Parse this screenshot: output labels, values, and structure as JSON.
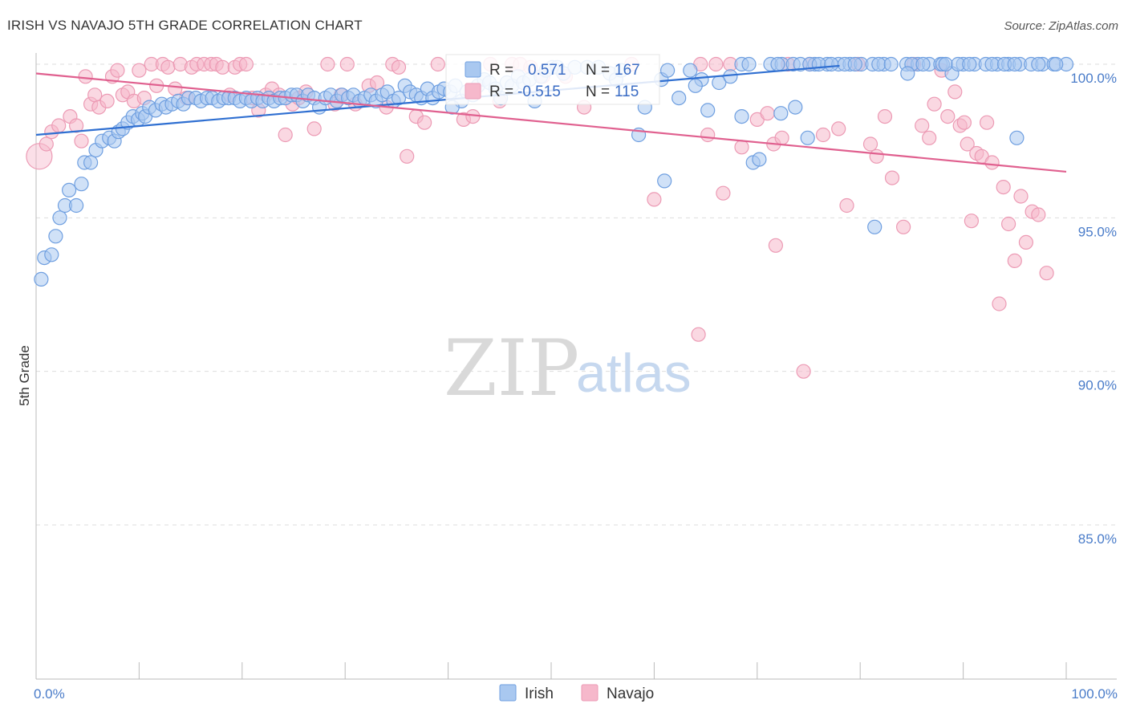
{
  "header": {
    "title": "IRISH VS NAVAJO 5TH GRADE CORRELATION CHART",
    "source": "Source: ZipAtlas.com"
  },
  "watermark": {
    "zip": "ZIP",
    "atlas": "atlas"
  },
  "colors": {
    "irish_fill": "#a9c8f0",
    "irish_stroke": "#6f9fe0",
    "irish_line": "#2f6fd1",
    "navajo_fill": "#f6b8cb",
    "navajo_stroke": "#ec9ab4",
    "navajo_line": "#e0608f",
    "grid": "#dddddd",
    "tick_text": "#4a7cc9"
  },
  "legend": {
    "irish_label": "Irish",
    "navajo_label": "Navajo"
  },
  "stats": {
    "irish": {
      "r_label": "R =",
      "r_value": "0.571",
      "n_label": "N =",
      "n_value": "167"
    },
    "navajo": {
      "r_label": "R =",
      "r_value": "-0.515",
      "n_label": "N =",
      "n_value": "115"
    }
  },
  "chart_data": {
    "type": "scatter",
    "title": "IRISH VS NAVAJO 5TH GRADE CORRELATION CHART",
    "xlabel": "",
    "ylabel": "5th Grade",
    "xlim": [
      0,
      100
    ],
    "ylim": [
      80.5,
      100.5
    ],
    "x_tick_labels": [
      "0.0%",
      "100.0%"
    ],
    "y_ticks": [
      100,
      95,
      90,
      85
    ],
    "y_tick_labels": [
      "100.0%",
      "95.0%",
      "90.0%",
      "85.0%"
    ],
    "grid": true,
    "legend_position": "bottom-center",
    "series": [
      {
        "name": "Irish",
        "trend": {
          "x": [
            0,
            78
          ],
          "y": [
            97.7,
            99.95
          ]
        },
        "points": [
          [
            0.5,
            93.0
          ],
          [
            0.8,
            93.7
          ],
          [
            1.5,
            93.8
          ],
          [
            1.9,
            94.4
          ],
          [
            2.3,
            95.0
          ],
          [
            2.8,
            95.4
          ],
          [
            3.2,
            95.9
          ],
          [
            3.9,
            95.4
          ],
          [
            4.4,
            96.1
          ],
          [
            4.7,
            96.8
          ],
          [
            5.3,
            96.8
          ],
          [
            5.8,
            97.2
          ],
          [
            6.4,
            97.5
          ],
          [
            7.1,
            97.6
          ],
          [
            7.6,
            97.5
          ],
          [
            8.0,
            97.8
          ],
          [
            8.4,
            97.9
          ],
          [
            8.9,
            98.1
          ],
          [
            9.4,
            98.3
          ],
          [
            9.9,
            98.2
          ],
          [
            10.3,
            98.4
          ],
          [
            10.6,
            98.3
          ],
          [
            11.0,
            98.6
          ],
          [
            11.6,
            98.5
          ],
          [
            12.2,
            98.7
          ],
          [
            12.6,
            98.6
          ],
          [
            13.2,
            98.7
          ],
          [
            13.8,
            98.8
          ],
          [
            14.3,
            98.7
          ],
          [
            14.8,
            98.9
          ],
          [
            15.5,
            98.9
          ],
          [
            16.0,
            98.8
          ],
          [
            16.6,
            98.9
          ],
          [
            17.1,
            98.9
          ],
          [
            17.7,
            98.8
          ],
          [
            18.2,
            98.9
          ],
          [
            18.7,
            98.9
          ],
          [
            19.3,
            98.9
          ],
          [
            19.8,
            98.8
          ],
          [
            20.4,
            98.9
          ],
          [
            20.9,
            98.8
          ],
          [
            21.5,
            98.9
          ],
          [
            22.0,
            98.8
          ],
          [
            22.6,
            98.9
          ],
          [
            23.1,
            98.8
          ],
          [
            23.7,
            98.9
          ],
          [
            24.2,
            98.9
          ],
          [
            24.8,
            99.0
          ],
          [
            25.3,
            99.0
          ],
          [
            25.9,
            98.8
          ],
          [
            26.4,
            99.0
          ],
          [
            27.0,
            98.9
          ],
          [
            27.5,
            98.6
          ],
          [
            28.1,
            98.9
          ],
          [
            28.6,
            99.0
          ],
          [
            29.2,
            98.8
          ],
          [
            29.7,
            99.0
          ],
          [
            30.3,
            98.9
          ],
          [
            30.8,
            99.0
          ],
          [
            31.4,
            98.8
          ],
          [
            31.9,
            98.9
          ],
          [
            32.5,
            99.0
          ],
          [
            33.0,
            98.8
          ],
          [
            33.6,
            99.0
          ],
          [
            34.1,
            99.1
          ],
          [
            34.7,
            98.8
          ],
          [
            35.2,
            98.9
          ],
          [
            35.8,
            99.3
          ],
          [
            36.3,
            99.1
          ],
          [
            36.9,
            99.0
          ],
          [
            37.4,
            98.9
          ],
          [
            38.0,
            99.2
          ],
          [
            38.5,
            98.9
          ],
          [
            39.1,
            99.1
          ],
          [
            39.6,
            99.2
          ],
          [
            40.2,
            99.1
          ],
          [
            40.7,
            99.3
          ],
          [
            41.3,
            98.8
          ],
          [
            41.8,
            99.1
          ],
          [
            42.4,
            99.0
          ],
          [
            42.9,
            99.3
          ],
          [
            43.5,
            99.5
          ],
          [
            44.0,
            99.4
          ],
          [
            44.6,
            99.2
          ],
          [
            45.1,
            98.9
          ],
          [
            45.7,
            99.4
          ],
          [
            46.2,
            99.3
          ],
          [
            46.8,
            99.6
          ],
          [
            47.3,
            99.4
          ],
          [
            47.9,
            99.5
          ],
          [
            48.4,
            98.8
          ],
          [
            49.0,
            99.6
          ],
          [
            49.5,
            99.8
          ],
          [
            50.1,
            99.9
          ],
          [
            50.6,
            99.9
          ],
          [
            51.2,
            99.7
          ],
          [
            52.3,
            99.9
          ],
          [
            53.5,
            99.9
          ],
          [
            54.6,
            99.9
          ],
          [
            55.7,
            99.7
          ],
          [
            56.3,
            99.5
          ],
          [
            56.8,
            99.8
          ],
          [
            58.5,
            97.7
          ],
          [
            59.1,
            98.6
          ],
          [
            60.7,
            99.5
          ],
          [
            61.3,
            99.8
          ],
          [
            62.4,
            98.9
          ],
          [
            63.5,
            99.8
          ],
          [
            64.6,
            99.5
          ],
          [
            65.2,
            98.5
          ],
          [
            66.3,
            99.4
          ],
          [
            67.4,
            99.6
          ],
          [
            68.5,
            98.3
          ],
          [
            69.6,
            96.8
          ],
          [
            70.2,
            96.9
          ],
          [
            71.3,
            100
          ],
          [
            72.4,
            100
          ],
          [
            73.5,
            100
          ],
          [
            75.6,
            100
          ],
          [
            76.8,
            100
          ],
          [
            77.9,
            100
          ],
          [
            79.0,
            100
          ],
          [
            80.1,
            100
          ],
          [
            81.2,
            100
          ],
          [
            82.3,
            100
          ],
          [
            84.5,
            100
          ],
          [
            85.6,
            100
          ],
          [
            86.7,
            100
          ],
          [
            87.8,
            100
          ],
          [
            88.9,
            99.7
          ],
          [
            90.0,
            100
          ],
          [
            91.1,
            100
          ],
          [
            92.2,
            100
          ],
          [
            93.3,
            100
          ],
          [
            94.4,
            100
          ],
          [
            95.5,
            100
          ],
          [
            96.6,
            100
          ],
          [
            97.7,
            100
          ],
          [
            98.8,
            100
          ],
          [
            100.0,
            100
          ],
          [
            88.0,
            100
          ],
          [
            68.5,
            100
          ],
          [
            69.2,
            100
          ],
          [
            72.0,
            100
          ],
          [
            74.2,
            100
          ],
          [
            75.1,
            100
          ],
          [
            76.0,
            100
          ],
          [
            77.2,
            100
          ],
          [
            78.5,
            100
          ],
          [
            79.5,
            100
          ],
          [
            81.8,
            100
          ],
          [
            83.0,
            100
          ],
          [
            85.0,
            100
          ],
          [
            86.1,
            100
          ],
          [
            88.3,
            100
          ],
          [
            89.5,
            100
          ],
          [
            90.6,
            100
          ],
          [
            92.8,
            100
          ],
          [
            94.0,
            100
          ],
          [
            95.0,
            100
          ],
          [
            97.3,
            100
          ],
          [
            99.0,
            100
          ],
          [
            61.0,
            96.2
          ],
          [
            64.0,
            99.3
          ],
          [
            72.3,
            98.4
          ],
          [
            73.7,
            98.6
          ],
          [
            74.9,
            97.6
          ],
          [
            81.4,
            94.7
          ],
          [
            84.6,
            99.7
          ],
          [
            95.2,
            97.6
          ],
          [
            40.4,
            98.6
          ]
        ]
      },
      {
        "name": "Navajo",
        "trend": {
          "x": [
            0,
            100
          ],
          "y": [
            99.7,
            96.5
          ]
        },
        "points": [
          [
            0.3,
            97.0
          ],
          [
            1.0,
            97.4
          ],
          [
            1.5,
            97.8
          ],
          [
            2.2,
            98.0
          ],
          [
            3.3,
            98.3
          ],
          [
            3.9,
            98.0
          ],
          [
            4.4,
            97.5
          ],
          [
            4.8,
            99.6
          ],
          [
            5.3,
            98.7
          ],
          [
            5.7,
            99.0
          ],
          [
            6.1,
            98.6
          ],
          [
            6.9,
            98.8
          ],
          [
            7.4,
            99.6
          ],
          [
            7.9,
            99.8
          ],
          [
            8.4,
            99.0
          ],
          [
            8.9,
            99.1
          ],
          [
            9.5,
            98.8
          ],
          [
            10.0,
            99.8
          ],
          [
            10.5,
            98.9
          ],
          [
            11.2,
            100
          ],
          [
            11.7,
            99.3
          ],
          [
            12.3,
            100
          ],
          [
            12.8,
            99.9
          ],
          [
            13.5,
            99.2
          ],
          [
            14.0,
            100
          ],
          [
            14.6,
            98.9
          ],
          [
            15.1,
            99.9
          ],
          [
            15.6,
            100
          ],
          [
            16.3,
            100
          ],
          [
            17.0,
            100
          ],
          [
            17.5,
            100
          ],
          [
            18.1,
            99.9
          ],
          [
            18.8,
            99.0
          ],
          [
            19.3,
            99.9
          ],
          [
            19.8,
            100
          ],
          [
            20.4,
            100
          ],
          [
            21.0,
            98.9
          ],
          [
            21.6,
            98.5
          ],
          [
            22.3,
            99.0
          ],
          [
            22.9,
            99.2
          ],
          [
            23.6,
            99.0
          ],
          [
            24.2,
            97.7
          ],
          [
            24.9,
            98.7
          ],
          [
            25.5,
            98.9
          ],
          [
            26.2,
            99.1
          ],
          [
            27.0,
            97.9
          ],
          [
            28.3,
            100
          ],
          [
            29.0,
            98.7
          ],
          [
            29.6,
            99.0
          ],
          [
            30.2,
            100
          ],
          [
            31.0,
            98.7
          ],
          [
            32.3,
            99.3
          ],
          [
            33.1,
            99.4
          ],
          [
            34.0,
            98.6
          ],
          [
            34.6,
            100
          ],
          [
            35.2,
            99.9
          ],
          [
            36.0,
            97.0
          ],
          [
            36.9,
            98.3
          ],
          [
            37.7,
            98.1
          ],
          [
            39.0,
            100
          ],
          [
            41.5,
            98.2
          ],
          [
            42.4,
            98.3
          ],
          [
            44.1,
            100
          ],
          [
            45.0,
            98.8
          ],
          [
            46.2,
            100
          ],
          [
            47.0,
            100
          ],
          [
            48.0,
            99.9
          ],
          [
            49.2,
            99.6
          ],
          [
            51.4,
            99.6
          ],
          [
            53.2,
            98.6
          ],
          [
            57.8,
            100
          ],
          [
            60.0,
            95.6
          ],
          [
            64.3,
            91.2
          ],
          [
            64.5,
            100
          ],
          [
            65.2,
            97.7
          ],
          [
            66.0,
            100
          ],
          [
            66.7,
            95.8
          ],
          [
            67.4,
            100
          ],
          [
            68.5,
            97.3
          ],
          [
            70.0,
            98.2
          ],
          [
            71.0,
            98.4
          ],
          [
            71.6,
            97.4
          ],
          [
            71.8,
            94.1
          ],
          [
            72.4,
            97.6
          ],
          [
            73.0,
            100
          ],
          [
            74.5,
            90.0
          ],
          [
            75.1,
            100
          ],
          [
            76.4,
            97.7
          ],
          [
            77.9,
            97.9
          ],
          [
            78.7,
            95.4
          ],
          [
            79.8,
            100
          ],
          [
            81.0,
            97.4
          ],
          [
            81.6,
            97.0
          ],
          [
            82.4,
            98.3
          ],
          [
            83.1,
            96.3
          ],
          [
            84.2,
            94.7
          ],
          [
            85.2,
            100
          ],
          [
            86.0,
            98.0
          ],
          [
            86.7,
            97.6
          ],
          [
            87.2,
            98.7
          ],
          [
            87.9,
            99.8
          ],
          [
            88.5,
            98.3
          ],
          [
            89.2,
            99.1
          ],
          [
            89.7,
            98.0
          ],
          [
            90.1,
            98.1
          ],
          [
            90.4,
            97.4
          ],
          [
            90.8,
            94.9
          ],
          [
            91.3,
            97.1
          ],
          [
            91.8,
            97.0
          ],
          [
            92.3,
            98.1
          ],
          [
            92.8,
            96.8
          ],
          [
            93.5,
            92.2
          ],
          [
            93.9,
            96.0
          ],
          [
            94.4,
            94.8
          ],
          [
            95.0,
            93.6
          ],
          [
            95.6,
            95.7
          ],
          [
            96.1,
            94.2
          ],
          [
            96.7,
            95.2
          ],
          [
            97.3,
            95.1
          ],
          [
            98.1,
            93.2
          ]
        ]
      }
    ]
  }
}
